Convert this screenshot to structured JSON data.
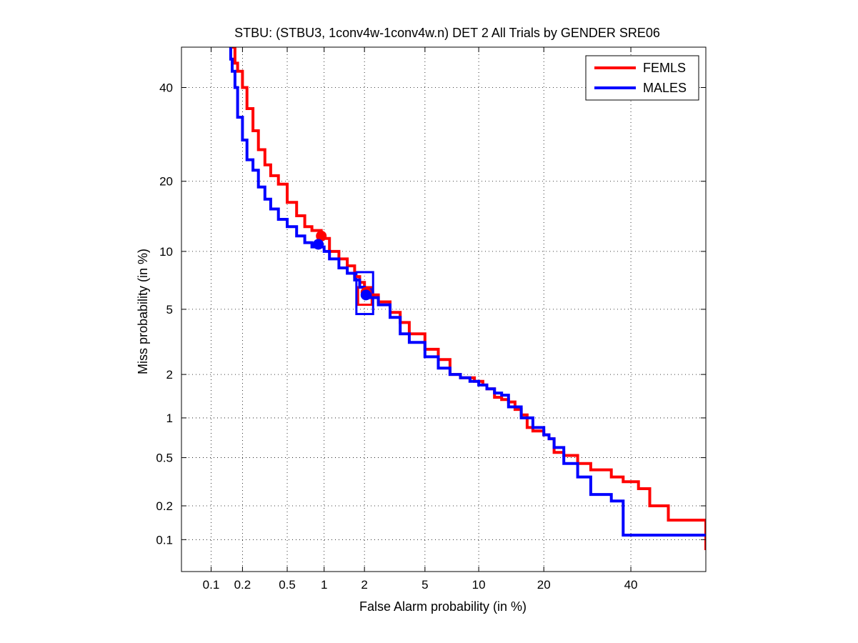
{
  "chart_data": {
    "type": "line",
    "title": "STBU: (STBU3, 1conv4w-1conv4w.n) DET 2 All Trials by GENDER SRE06",
    "xlabel": "False Alarm probability (in %)",
    "ylabel": "Miss probability (in %)",
    "xscale": "normal-deviate (probit)",
    "yscale": "normal-deviate (probit)",
    "xlim": [
      0.05,
      60
    ],
    "ylim": [
      0.05,
      50
    ],
    "xticks": [
      0.1,
      0.2,
      0.5,
      1,
      2,
      5,
      10,
      20,
      40
    ],
    "xtick_labels": [
      "0.1",
      "0.2",
      "0.5",
      "1",
      "2",
      "5",
      "10",
      "20",
      "40"
    ],
    "yticks": [
      0.1,
      0.2,
      0.5,
      1,
      2,
      5,
      10,
      20,
      40
    ],
    "ytick_labels": [
      "0.1",
      "0.2",
      "0.5",
      "1",
      "2",
      "5",
      "10",
      "20",
      "40"
    ],
    "grid": true,
    "legend_position": "top-right",
    "series": [
      {
        "name": "FEMLS",
        "color": "#ff0000",
        "x": [
          0.16,
          0.17,
          0.18,
          0.2,
          0.22,
          0.25,
          0.28,
          0.32,
          0.36,
          0.42,
          0.5,
          0.6,
          0.7,
          0.8,
          0.95,
          1.1,
          1.3,
          1.5,
          1.7,
          1.85,
          2.0,
          2.2,
          2.5,
          3.0,
          3.5,
          4.0,
          5.0,
          6.0,
          7.0,
          8.0,
          9.5,
          10.5,
          11.0,
          12.0,
          13.0,
          14.0,
          15.0,
          16.0,
          17.0,
          18.0,
          20.0,
          21.0,
          22.0,
          24.0,
          27.0,
          30.0,
          35.0,
          38.0,
          42.0,
          45.0,
          50.0,
          55.0,
          60.0
        ],
        "y": [
          50,
          46,
          44,
          40,
          35,
          30,
          26,
          23,
          21,
          19.5,
          16.5,
          14.5,
          13,
          12.5,
          11.5,
          10,
          9.2,
          8.5,
          7.5,
          7.0,
          6.5,
          6.0,
          5.5,
          4.8,
          4.2,
          3.6,
          2.9,
          2.5,
          2.0,
          1.9,
          1.8,
          1.7,
          1.6,
          1.4,
          1.35,
          1.3,
          1.15,
          1.05,
          0.85,
          0.8,
          0.75,
          0.7,
          0.55,
          0.52,
          0.45,
          0.4,
          0.35,
          0.32,
          0.28,
          0.2,
          0.15,
          0.15,
          0.08
        ]
      },
      {
        "name": "MALES",
        "color": "#0000ff",
        "x": [
          0.15,
          0.155,
          0.16,
          0.17,
          0.18,
          0.2,
          0.22,
          0.25,
          0.28,
          0.32,
          0.36,
          0.42,
          0.5,
          0.6,
          0.7,
          0.8,
          0.9,
          1.0,
          1.1,
          1.3,
          1.5,
          1.7,
          1.85,
          2.0,
          2.2,
          2.5,
          3.0,
          3.5,
          4.0,
          5.0,
          6.0,
          7.0,
          8.0,
          9.0,
          10.0,
          11.0,
          12.0,
          13.0,
          14.0,
          16.0,
          18.0,
          20.0,
          21.0,
          22.0,
          24.0,
          27.0,
          30.0,
          35.0,
          38.0,
          42.0,
          50.0,
          60.0
        ],
        "y": [
          50,
          47,
          44,
          40,
          33,
          28,
          24,
          22,
          19,
          17,
          15.5,
          14,
          13,
          11.8,
          11,
          10.5,
          10.5,
          10,
          9.2,
          8.3,
          7.8,
          7.2,
          6.6,
          6.4,
          5.8,
          5.3,
          4.5,
          3.6,
          3.2,
          2.6,
          2.2,
          2.0,
          1.9,
          1.8,
          1.7,
          1.6,
          1.5,
          1.45,
          1.2,
          1.0,
          0.85,
          0.75,
          0.7,
          0.6,
          0.45,
          0.35,
          0.25,
          0.22,
          0.11,
          0.11,
          0.11,
          0.11
        ]
      }
    ],
    "markers": [
      {
        "series": "FEMLS",
        "label": "actual decision point",
        "x": 0.95,
        "y": 11.8,
        "shape": "circle",
        "color": "#ff0000"
      },
      {
        "series": "MALES",
        "label": "actual decision point",
        "x": 0.9,
        "y": 10.8,
        "shape": "circle",
        "color": "#0000ff"
      },
      {
        "series": "FEMLS",
        "label": "min DCF point",
        "x": 2.05,
        "y": 6.2,
        "shape": "circle",
        "color": "#ff0000"
      },
      {
        "series": "MALES",
        "label": "min DCF point",
        "x": 2.05,
        "y": 6.0,
        "shape": "circle",
        "color": "#0000ff"
      }
    ],
    "confidence_boxes": [
      {
        "series": "FEMLS",
        "color": "#ff0000",
        "x_range": [
          1.8,
          2.25
        ],
        "y_range": [
          5.3,
          6.6
        ]
      },
      {
        "series": "MALES",
        "color": "#0000ff",
        "x_range": [
          1.75,
          2.3
        ],
        "y_range": [
          4.7,
          7.9
        ]
      }
    ]
  }
}
